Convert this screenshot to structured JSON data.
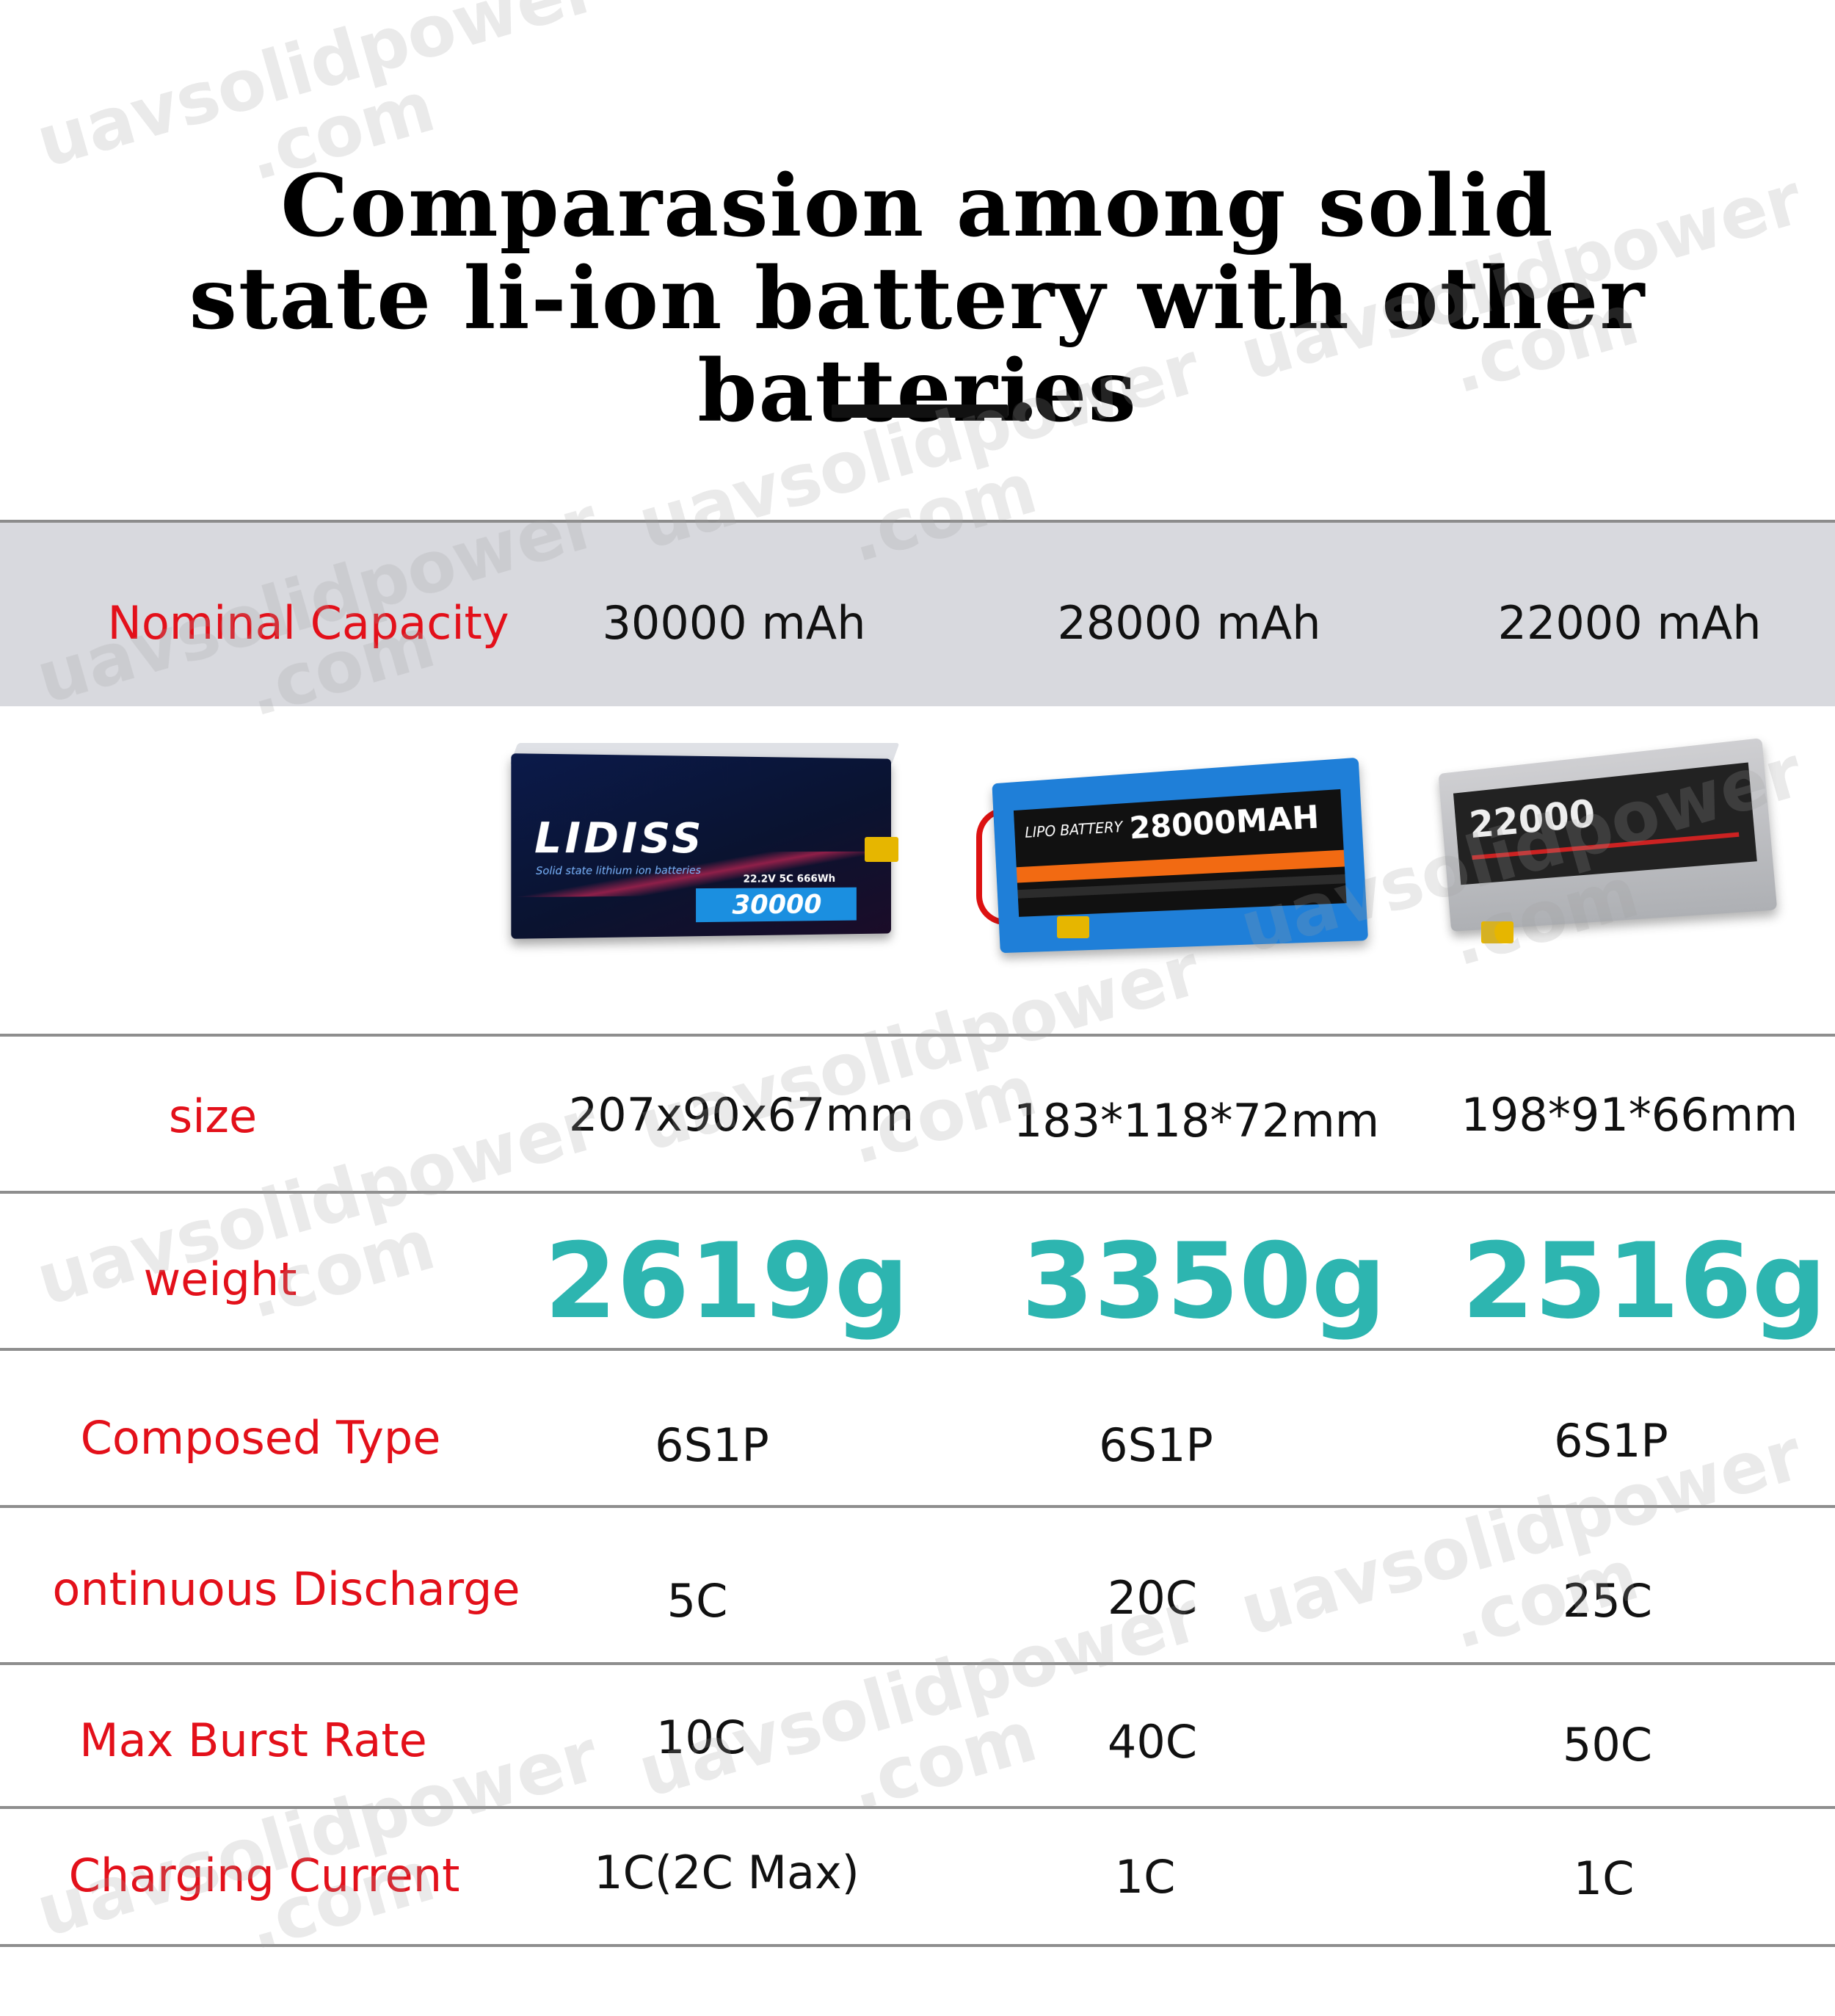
{
  "title": {
    "line1": "Comparasion among solid",
    "line2": "state li-ion battery with other batteries"
  },
  "watermark": {
    "line1": "uavsolidpower",
    "line2": ".com"
  },
  "header": {
    "label": "Nominal Capacity",
    "values": [
      "30000 mAh",
      "28000 mAh",
      "22000 mAh"
    ]
  },
  "images": {
    "battery1": {
      "brand": "LIDISS",
      "subtitle": "Solid state lithium ion batteries",
      "spec": "22.2V   5C   666Wh",
      "capacity": "30000"
    },
    "battery2": {
      "label": "LIPO BATTERY",
      "capacity": "28000MAH"
    },
    "battery3": {
      "capacity": "22000"
    }
  },
  "rows": [
    {
      "label": "size",
      "values": [
        "207x90x67mm",
        "183*118*72mm",
        "198*91*66mm"
      ]
    },
    {
      "label": "weight",
      "values": [
        "2619g",
        "3350g",
        "2516g"
      ]
    },
    {
      "label": "Composed Type",
      "values": [
        "6S1P",
        "6S1P",
        "6S1P"
      ]
    },
    {
      "label": "ontinuous Discharge",
      "values": [
        "5C",
        "20C",
        "25C"
      ]
    },
    {
      "label": "Max Burst Rate",
      "values": [
        "10C",
        "40C",
        "50C"
      ]
    },
    {
      "label": "Charging Current",
      "values": [
        "1C(2C Max)",
        "1C",
        "1C"
      ]
    }
  ],
  "colors": {
    "label_red": "#e3101a",
    "weight_teal": "#2db5b0",
    "header_band": "#d8d9de"
  }
}
